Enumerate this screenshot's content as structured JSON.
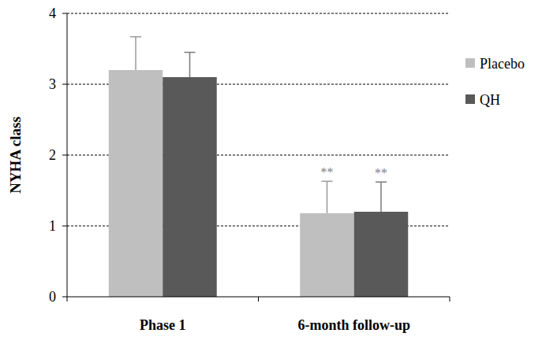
{
  "chart_data": {
    "type": "bar",
    "y_label": "NYHA class",
    "categories": [
      "Phase 1",
      "6-month follow-up"
    ],
    "series": [
      {
        "name": "Placebo",
        "color": "#bfbfbf",
        "values": [
          3.2,
          1.18
        ],
        "errors": [
          0.47,
          0.45
        ],
        "significance": [
          null,
          "**"
        ]
      },
      {
        "name": "QH",
        "color": "#595959",
        "values": [
          3.1,
          1.2
        ],
        "errors": [
          0.35,
          0.42
        ],
        "significance": [
          null,
          "**"
        ]
      }
    ],
    "ylim": [
      0,
      4
    ],
    "yticks": [
      0,
      1,
      2,
      3,
      4
    ],
    "grid": true,
    "legend": "right"
  }
}
